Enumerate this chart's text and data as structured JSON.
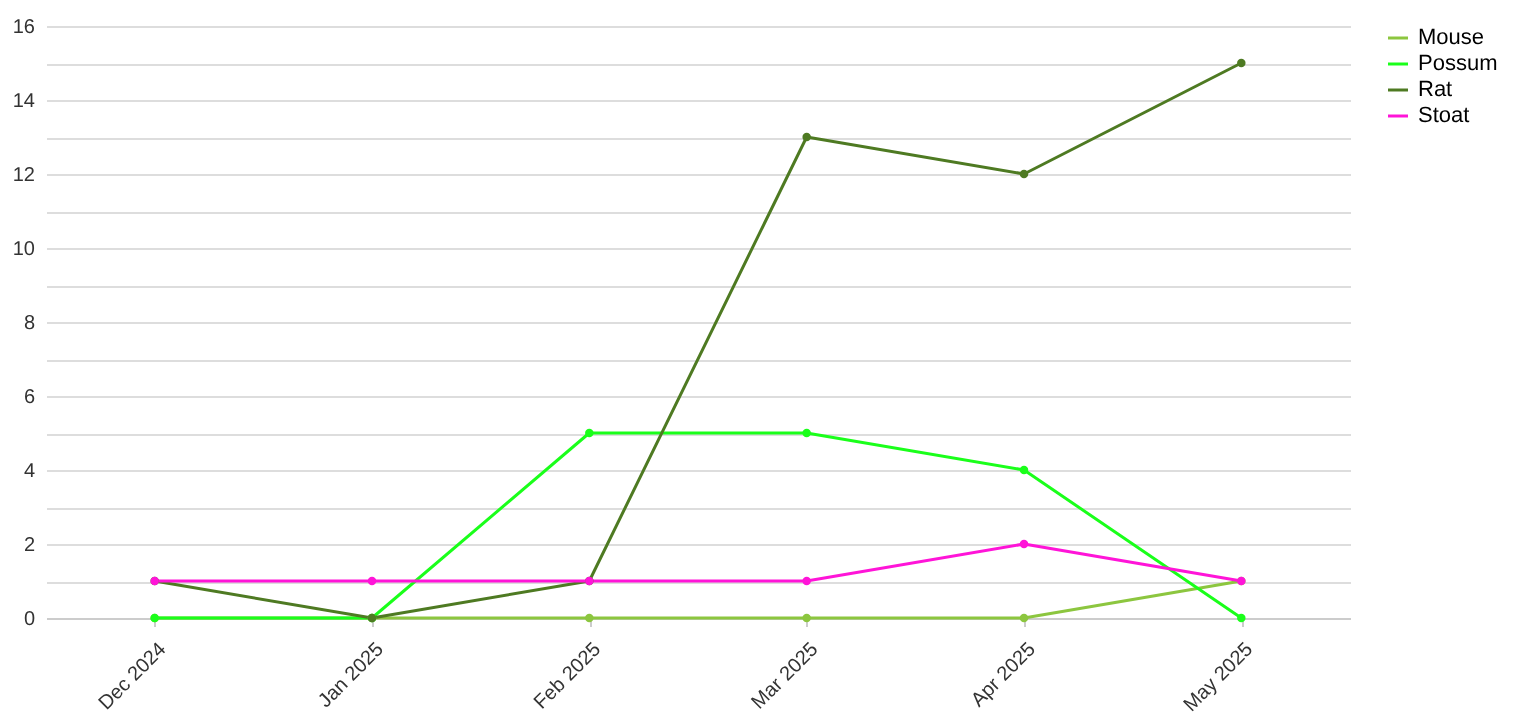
{
  "chart_data": {
    "type": "line",
    "categories": [
      "Dec 2024",
      "Jan 2025",
      "Feb 2025",
      "Mar 2025",
      "Apr 2025",
      "May 2025"
    ],
    "series": [
      {
        "name": "Mouse",
        "color": "#8cc63f",
        "values": [
          0,
          0,
          0,
          0,
          0,
          1
        ]
      },
      {
        "name": "Possum",
        "color": "#1aff1a",
        "values": [
          0,
          0,
          5,
          5,
          4,
          0
        ]
      },
      {
        "name": "Rat",
        "color": "#4e7a22",
        "values": [
          1,
          0,
          1,
          13,
          12,
          15
        ]
      },
      {
        "name": "Stoat",
        "color": "#ff14d8",
        "values": [
          1,
          1,
          1,
          1,
          2,
          1
        ]
      }
    ],
    "ylim": [
      0,
      16
    ],
    "yticks": [
      0,
      {
        "value": 1,
        "label": null
      },
      2,
      {
        "value": 3,
        "label": null
      },
      4,
      {
        "value": 5,
        "label": null
      },
      6,
      {
        "value": 7,
        "label": null
      },
      8,
      {
        "value": 9,
        "label": null
      },
      10,
      {
        "value": 11,
        "label": null
      },
      12,
      {
        "value": 13,
        "label": null
      },
      14,
      {
        "value": 15,
        "label": null
      },
      16
    ],
    "grid": "y",
    "legend": "right",
    "marker": "circle",
    "line_style": "solid"
  }
}
